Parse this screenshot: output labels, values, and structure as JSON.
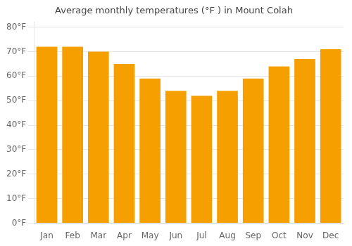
{
  "chart_data": {
    "type": "bar",
    "title": "Average monthly temperatures (°F ) in Mount Colah",
    "categories": [
      "Jan",
      "Feb",
      "Mar",
      "Apr",
      "May",
      "Jun",
      "Jul",
      "Aug",
      "Sep",
      "Oct",
      "Nov",
      "Dec"
    ],
    "values": [
      72,
      72,
      70,
      65,
      59,
      54,
      52,
      54,
      59,
      64,
      67,
      71
    ],
    "color": "#F5A000",
    "ylim": [
      0,
      82
    ],
    "yticks": [
      {
        "value": 0,
        "label": "0°F"
      },
      {
        "value": 10,
        "label": "10°F"
      },
      {
        "value": 20,
        "label": "20°F"
      },
      {
        "value": 30,
        "label": "30°F"
      },
      {
        "value": 40,
        "label": "40°F"
      },
      {
        "value": 50,
        "label": "50°F"
      },
      {
        "value": 60,
        "label": "60°F"
      },
      {
        "value": 70,
        "label": "70°F"
      },
      {
        "value": 80,
        "label": "80°F"
      }
    ],
    "grid": true
  }
}
